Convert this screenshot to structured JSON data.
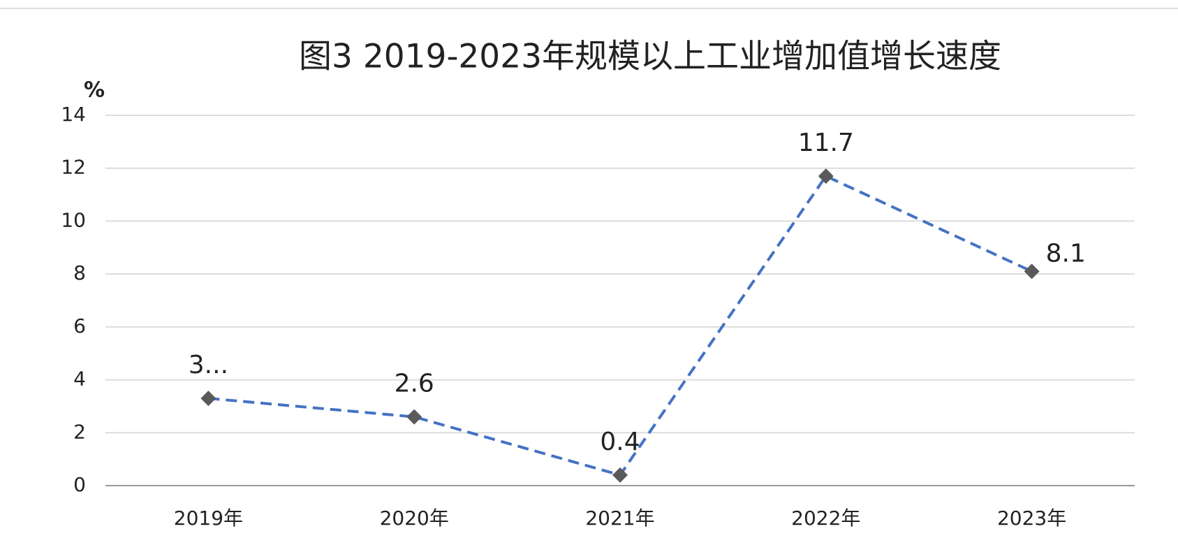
{
  "chart_data": {
    "type": "line",
    "title": "图3 2019-2023年规模以上工业增加值增长速度",
    "y_label": "%",
    "categories": [
      "2019年",
      "2020年",
      "2021年",
      "2022年",
      "2023年"
    ],
    "series": [
      {
        "color": "#4472c4",
        "marker_color": "#5a5a5a",
        "values": [
          3.3,
          2.6,
          0.4,
          11.7,
          8.1
        ],
        "value_labels": [
          "3...",
          "2.6",
          "0.4",
          "11.7",
          "8.1"
        ]
      }
    ],
    "ylim": [
      0,
      14
    ],
    "yticks": [
      0,
      2,
      4,
      6,
      8,
      10,
      12,
      14
    ],
    "grid": true
  }
}
